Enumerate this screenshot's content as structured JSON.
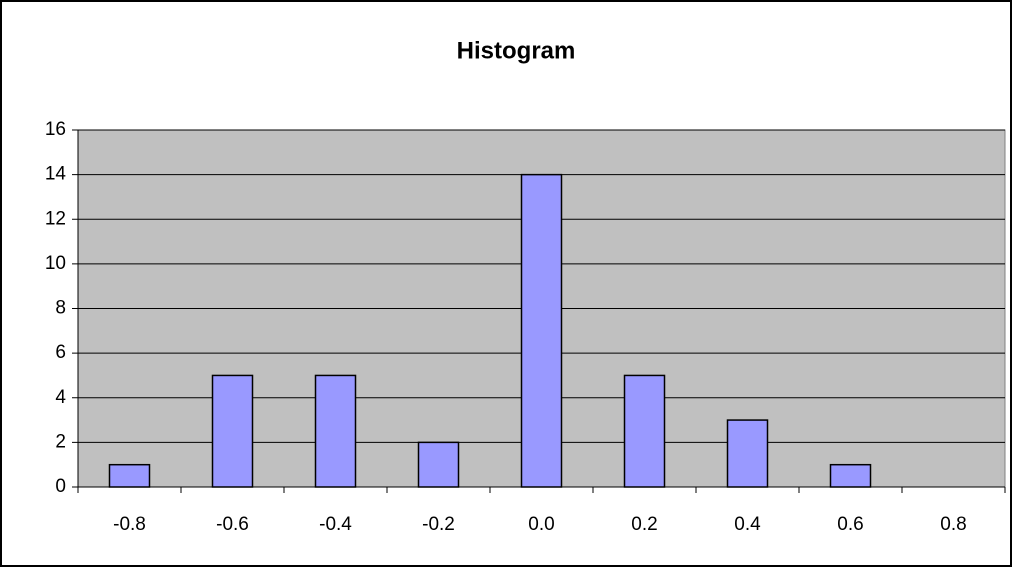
{
  "chart_data": {
    "type": "bar",
    "title": "Histogram",
    "categories": [
      "-0.8",
      "-0.6",
      "-0.4",
      "-0.2",
      "0.0",
      "0.2",
      "0.4",
      "0.6",
      "0.8"
    ],
    "values": [
      1,
      5,
      5,
      2,
      14,
      5,
      3,
      1,
      0
    ],
    "color": "#9999ff",
    "ylim": [
      0,
      16
    ],
    "yticks": [
      0,
      2,
      4,
      6,
      8,
      10,
      12,
      14,
      16
    ],
    "grid": true
  }
}
